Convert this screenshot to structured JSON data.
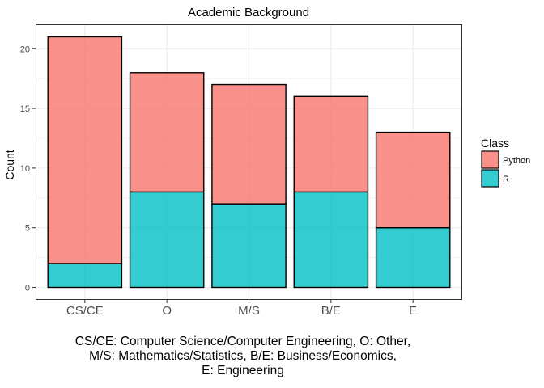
{
  "chart_data": {
    "type": "bar",
    "stacked": true,
    "title": "Academic Background",
    "xlabel": "",
    "ylabel": "Count",
    "categories": [
      "CS/CE",
      "O",
      "M/S",
      "B/E",
      "E"
    ],
    "series": [
      {
        "name": "Python",
        "values": [
          19,
          10,
          10,
          8,
          8
        ],
        "color": "#f8766d"
      },
      {
        "name": "R",
        "values": [
          2,
          8,
          7,
          8,
          5
        ],
        "color": "#00bfc4"
      }
    ],
    "ylim": [
      -1.05,
      22.05
    ],
    "yticks": [
      0,
      5,
      10,
      15,
      20
    ],
    "grid": true,
    "legend": {
      "title": "Class",
      "position": "right"
    }
  },
  "caption": {
    "lines": [
      "CS/CE: Computer Science/Computer Engineering, O: Other,",
      "M/S: Mathematics/Statistics, B/E: Business/Economics,",
      "E: Engineering"
    ]
  }
}
